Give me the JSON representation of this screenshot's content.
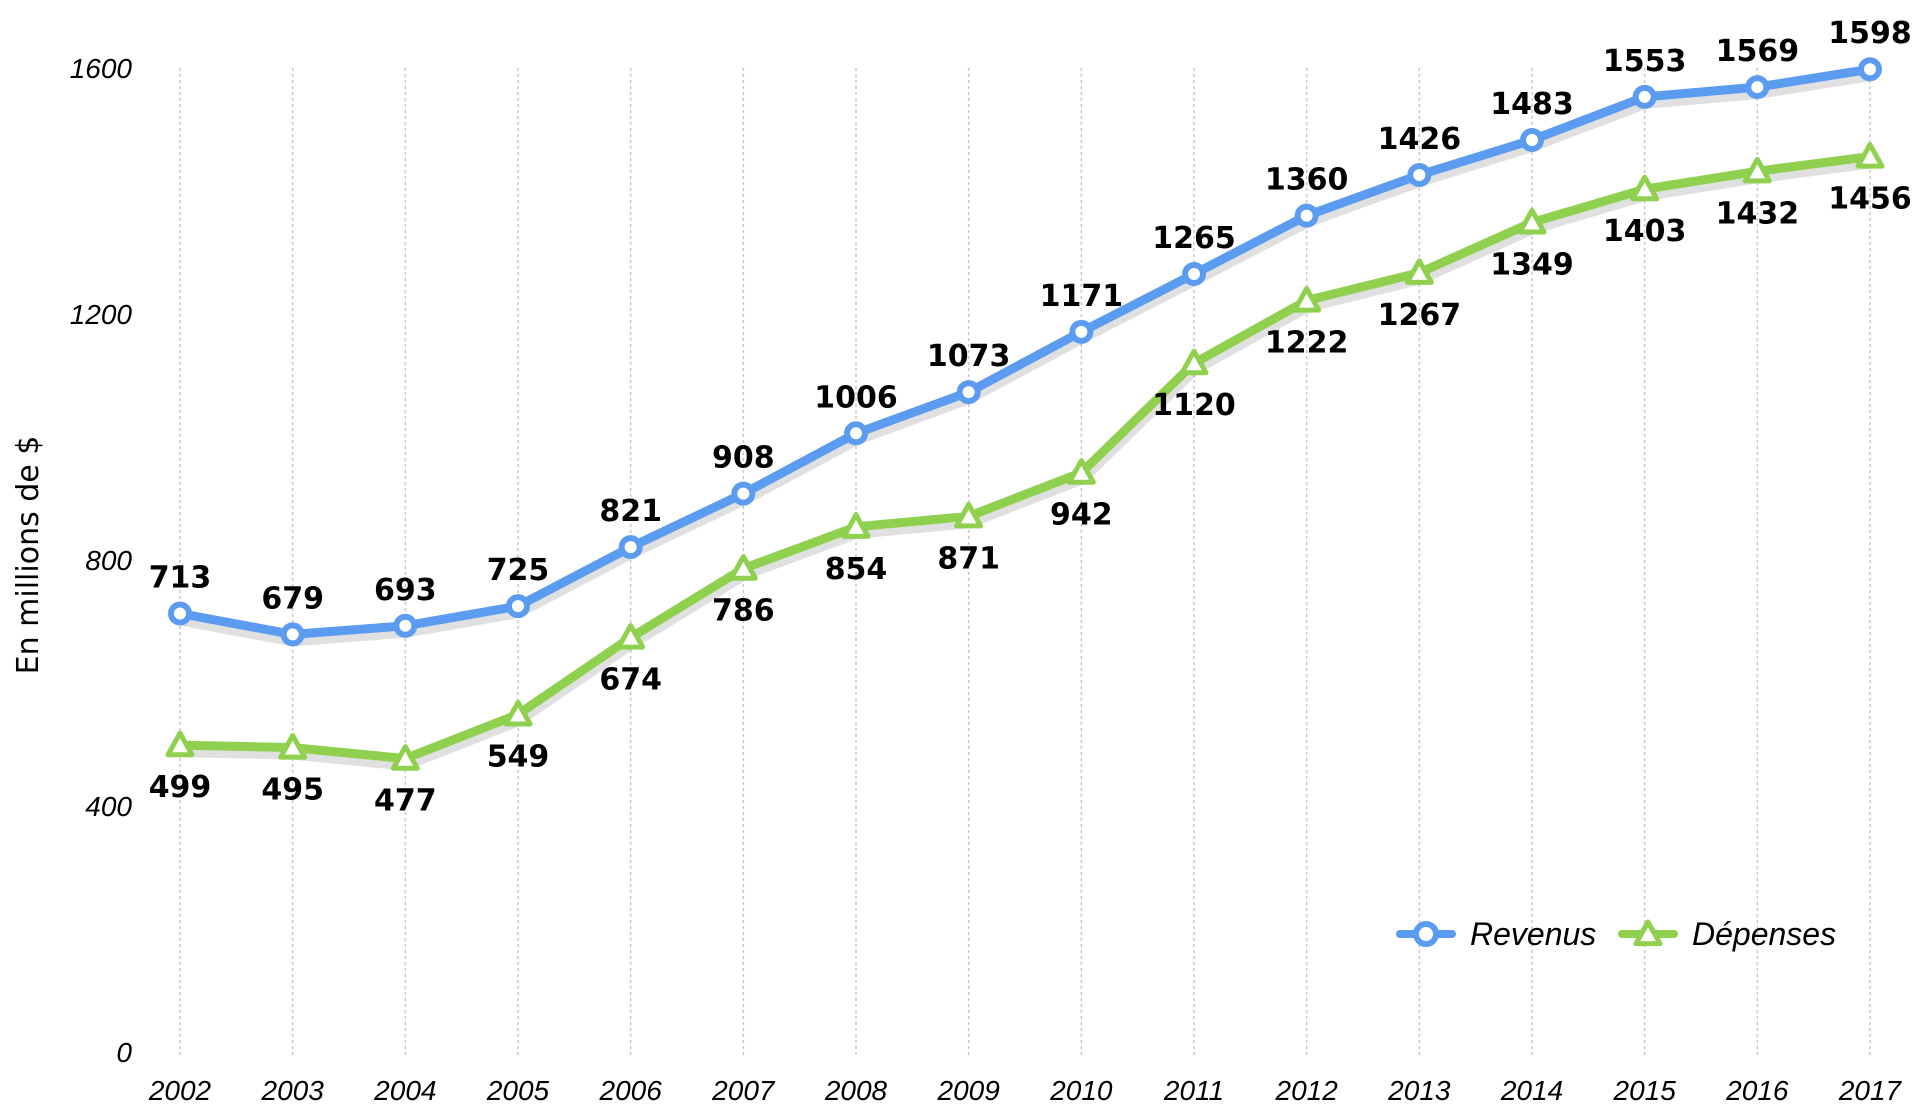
{
  "chart_data": {
    "type": "line",
    "title": "",
    "xlabel": "",
    "ylabel": "En millions de $",
    "ylim": [
      0,
      1600
    ],
    "yticks": [
      0,
      400,
      800,
      1200,
      1600
    ],
    "grid": "vertical dotted",
    "legend_position": "bottom-right",
    "categories": [
      "2002",
      "2003",
      "2004",
      "2005",
      "2006",
      "2007",
      "2008",
      "2009",
      "2010",
      "2011",
      "2012",
      "2013",
      "2014",
      "2015",
      "2016",
      "2017"
    ],
    "series": [
      {
        "name": "Revenus",
        "color": "#5b9cf0",
        "marker": "circle",
        "label_position": "above",
        "values": [
          713,
          679,
          693,
          725,
          821,
          908,
          1006,
          1073,
          1171,
          1265,
          1360,
          1426,
          1483,
          1553,
          1569,
          1598
        ]
      },
      {
        "name": "Dépenses",
        "color": "#8fd14f",
        "marker": "triangle",
        "label_position": "below",
        "values": [
          499,
          495,
          477,
          549,
          674,
          786,
          854,
          871,
          942,
          1120,
          1222,
          1267,
          1349,
          1403,
          1432,
          1456
        ]
      }
    ]
  }
}
